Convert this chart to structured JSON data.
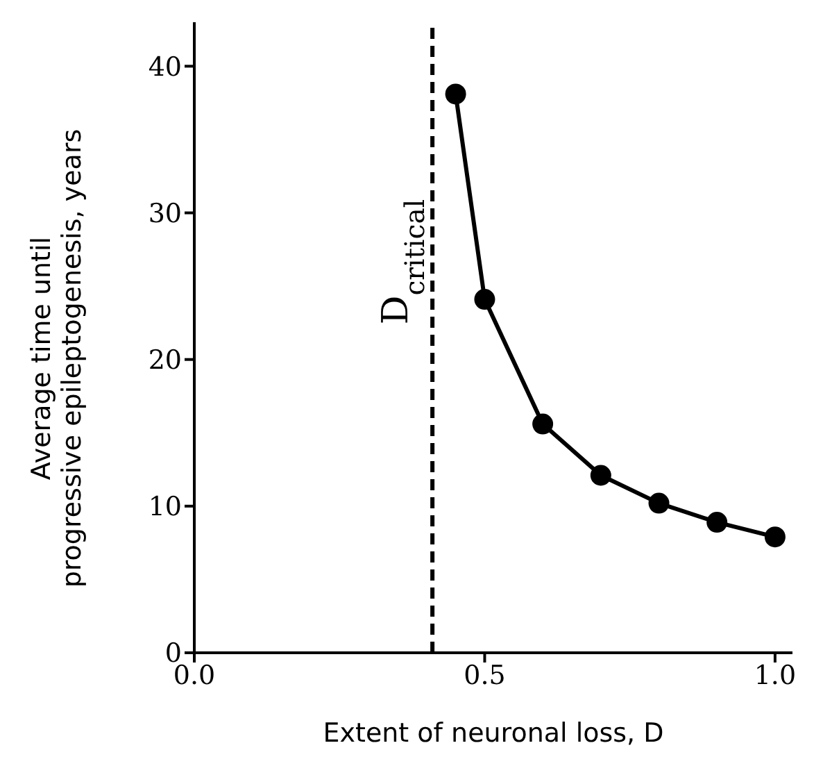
{
  "chart_data": {
    "type": "line",
    "xlabel": "Extent of neuronal loss, D",
    "ylabel": "Average time until progressive epileptogenesis, years",
    "x": [
      0.45,
      0.5,
      0.6,
      0.7,
      0.8,
      0.9,
      1.0
    ],
    "series": [
      {
        "color": "#000000",
        "values": [
          38.1,
          24.1,
          15.6,
          12.1,
          10.2,
          8.9,
          7.9
        ]
      }
    ],
    "xlim": [
      0,
      1.03
    ],
    "xticks": [
      {
        "value": 0,
        "label": "0.0"
      },
      {
        "value": 0.5,
        "label": "0.5"
      },
      {
        "value": 1,
        "label": "1.0"
      }
    ],
    "ylim": [
      0,
      43
    ],
    "yticks": [
      0,
      10,
      20,
      30,
      40
    ],
    "ref_lines": [
      {
        "axis": "x",
        "value": 0.41,
        "label": "D$_{critical}$",
        "color": "#000000",
        "line_style": "dashed"
      }
    ],
    "marker": "circle",
    "line_style": "solid",
    "grid": false,
    "legend": false
  }
}
